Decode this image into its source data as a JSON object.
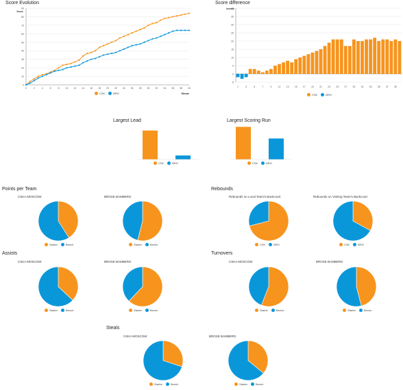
{
  "colors": {
    "csk": "#F7941D",
    "bro": "#0A97D9",
    "grid": "#e6e6e6",
    "axis": "#888888"
  },
  "score_evolution": {
    "title": "Score Evolution",
    "ylabel": "Score",
    "xlabel": "Minute",
    "legend": [
      {
        "label": "CSK",
        "color": "#F7941D"
      },
      {
        "label": "BRO",
        "color": "#0A97D9"
      }
    ]
  },
  "score_difference": {
    "title": "Score difference",
    "ylabel": "Difference",
    "legend": [
      {
        "label": "CSK",
        "color": "#F7941D"
      },
      {
        "label": "BRO",
        "color": "#0A97D9"
      }
    ]
  },
  "largest_lead": {
    "title": "Largest Lead",
    "legend": [
      "CSK",
      "BRO"
    ]
  },
  "largest_run": {
    "title": "Largest Scoring Run",
    "legend": [
      "CSK",
      "BRO"
    ]
  },
  "sections": {
    "points": "Points per Team",
    "rebounds": "Rebounds",
    "assists": "Assists",
    "turnovers": "Turnovers",
    "steals": "Steals"
  },
  "pie_labels": {
    "cska": "CSKA MOSCOW",
    "brose": "BROSE BAMBERG",
    "reb_local": "Rebounds on Local Team's Backcourt",
    "reb_visiting": "Rebounds on Visiting Team's Backcourt",
    "starter": "Starter",
    "bench": "Bench",
    "csk": "CSK",
    "bro": "BRO"
  },
  "chart_data": [
    {
      "id": "score_evolution",
      "type": "line",
      "title": "Score Evolution",
      "xlabel": "Minute",
      "ylabel": "Score",
      "x": [
        0,
        1,
        2,
        3,
        4,
        5,
        6,
        7,
        8,
        9,
        10,
        11,
        12,
        13,
        14,
        15,
        16,
        17,
        18,
        19,
        20,
        21,
        22,
        23,
        24,
        25,
        26,
        27,
        28,
        29,
        30,
        31,
        32,
        33,
        34,
        35,
        36,
        37,
        38,
        39,
        40
      ],
      "x_ticks": [
        0,
        2,
        4,
        6,
        8,
        10,
        12,
        14,
        16,
        18,
        20,
        22,
        24,
        26,
        28,
        30,
        32,
        34,
        36,
        38,
        40
      ],
      "y_ticks": [
        0,
        10,
        20,
        30,
        40,
        50,
        60,
        70,
        80,
        90
      ],
      "ylim": [
        0,
        90
      ],
      "series": [
        {
          "name": "CSK",
          "color": "#F7941D",
          "values": [
            0,
            4,
            7,
            10,
            12,
            13,
            15,
            17,
            20,
            23,
            24,
            25,
            27,
            29,
            34,
            37,
            38,
            40,
            44,
            46,
            48,
            50,
            52,
            55,
            57,
            59,
            61,
            63,
            65,
            67,
            70,
            72,
            73,
            76,
            78,
            79,
            80,
            81,
            82,
            83,
            84
          ]
        },
        {
          "name": "BRO",
          "color": "#0A97D9",
          "values": [
            0,
            2,
            5,
            8,
            10,
            12,
            14,
            16,
            17,
            18,
            20,
            21,
            22,
            23,
            26,
            28,
            30,
            31,
            33,
            35,
            36,
            37,
            38,
            40,
            42,
            44,
            46,
            47,
            48,
            50,
            52,
            54,
            55,
            57,
            59,
            61,
            63,
            64,
            64,
            64,
            64
          ]
        }
      ],
      "legend": [
        "CSK",
        "BRO"
      ]
    },
    {
      "id": "score_difference",
      "type": "bar",
      "title": "Score difference",
      "ylabel": "Difference",
      "categories": [
        1,
        2,
        3,
        4,
        5,
        6,
        7,
        8,
        9,
        10,
        11,
        12,
        13,
        14,
        15,
        16,
        17,
        18,
        19,
        20,
        21,
        22,
        23,
        24,
        25,
        26,
        27,
        28,
        29,
        30,
        31,
        32,
        33,
        34,
        35,
        36,
        37,
        38,
        39,
        40
      ],
      "x_ticks": [
        1,
        3,
        5,
        7,
        9,
        11,
        13,
        15,
        17,
        19,
        21,
        23,
        25,
        27,
        29,
        31,
        33,
        35,
        37,
        39
      ],
      "y_ticks": [
        -5,
        0,
        5,
        10,
        15,
        20,
        25,
        30,
        35,
        40
      ],
      "ylim": [
        -5,
        40
      ],
      "values": [
        -2,
        -3,
        -2,
        3,
        3,
        2,
        1,
        2,
        3,
        5,
        6,
        7,
        8,
        7,
        9,
        10,
        11,
        12,
        13,
        14,
        15,
        17,
        19,
        21,
        21,
        21,
        17,
        17,
        21,
        20,
        20,
        21,
        21,
        22,
        20,
        21,
        21,
        20,
        21,
        20
      ],
      "legend": [
        "CSK",
        "BRO"
      ]
    },
    {
      "id": "largest_lead",
      "type": "bar",
      "title": "Largest Lead",
      "categories": [
        "CSK",
        "BRO"
      ],
      "values": [
        22,
        3
      ],
      "ylim": [
        0,
        25
      ]
    },
    {
      "id": "largest_run",
      "type": "bar",
      "title": "Largest Scoring Run",
      "categories": [
        "CSK",
        "BRO"
      ],
      "values": [
        14,
        9
      ],
      "ylim": [
        0,
        15
      ]
    },
    {
      "id": "pie_points_cska",
      "type": "pie",
      "title": "CSKA MOSCOW",
      "categories": [
        "Starter",
        "Bench"
      ],
      "values": [
        41,
        59
      ]
    },
    {
      "id": "pie_points_brose",
      "type": "pie",
      "title": "BROSE BAMBERG",
      "categories": [
        "Starter",
        "Bench"
      ],
      "values": [
        54,
        46
      ]
    },
    {
      "id": "pie_reb_local",
      "type": "pie",
      "title": "Rebounds on Local Team's Backcourt",
      "categories": [
        "CSK",
        "BRO"
      ],
      "values": [
        71,
        29
      ]
    },
    {
      "id": "pie_reb_visiting",
      "type": "pie",
      "title": "Rebounds on Visiting Team's Backcourt",
      "categories": [
        "CSK",
        "BRO"
      ],
      "values": [
        33,
        67
      ]
    },
    {
      "id": "pie_assists_cska",
      "type": "pie",
      "title": "CSKA MOSCOW",
      "categories": [
        "Starter",
        "Bench"
      ],
      "values": [
        37,
        63
      ]
    },
    {
      "id": "pie_assists_brose",
      "type": "pie",
      "title": "BROSE BAMBERG",
      "categories": [
        "Starter",
        "Bench"
      ],
      "values": [
        62,
        38
      ]
    },
    {
      "id": "pie_to_cska",
      "type": "pie",
      "title": "CSKA MOSCOW",
      "categories": [
        "Starter",
        "Bench"
      ],
      "values": [
        56,
        44
      ]
    },
    {
      "id": "pie_to_brose",
      "type": "pie",
      "title": "BROSE BAMBERG",
      "categories": [
        "Starter",
        "Bench"
      ],
      "values": [
        46,
        54
      ]
    },
    {
      "id": "pie_steals_cska",
      "type": "pie",
      "title": "CSKA MOSCOW",
      "categories": [
        "Starter",
        "Bench"
      ],
      "values": [
        30,
        70
      ]
    },
    {
      "id": "pie_steals_brose",
      "type": "pie",
      "title": "BROSE BAMBERG",
      "categories": [
        "Starter",
        "Bench"
      ],
      "values": [
        36,
        64
      ]
    }
  ]
}
